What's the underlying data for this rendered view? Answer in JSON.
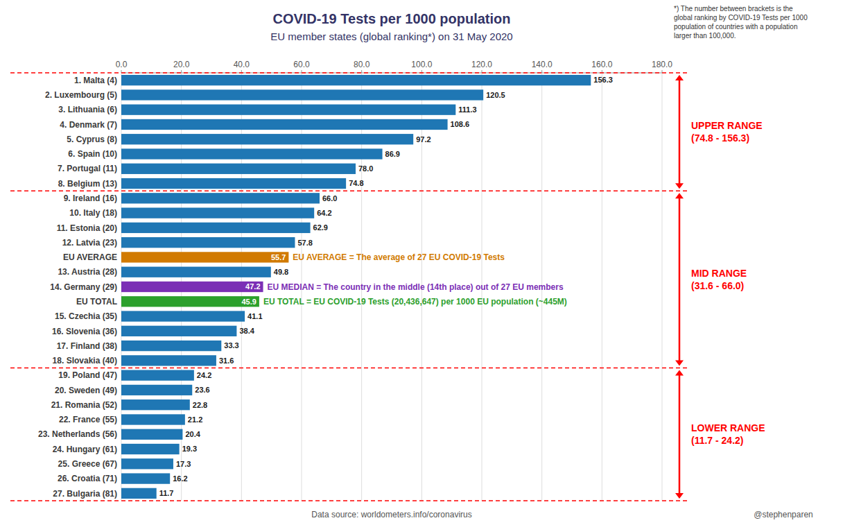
{
  "chart_data": {
    "type": "bar",
    "orientation": "horizontal",
    "title": "COVID-19 Tests per 1000 population",
    "subtitle": "EU member states (global ranking*) on 31 May 2020",
    "footnote": "*) The number between brackets is the\nglobal ranking by COVID-19 Tests per 1000\npopulation of countries with a population\nlarger than 100,000.",
    "datasource": "Data source: worldometers.info/coronavirus",
    "credit": "@stephenparen",
    "xlim": [
      0,
      180
    ],
    "xticks": [
      {
        "value": 0,
        "label": "0.0"
      },
      {
        "value": 20,
        "label": "20.0"
      },
      {
        "value": 40,
        "label": "40.0"
      },
      {
        "value": 60,
        "label": "60.0"
      },
      {
        "value": 80,
        "label": "80.0"
      },
      {
        "value": 100,
        "label": "100.0"
      },
      {
        "value": 120,
        "label": "120.0"
      },
      {
        "value": 140,
        "label": "140.0"
      },
      {
        "value": 160,
        "label": "160.0"
      },
      {
        "value": 180,
        "label": "180.0"
      }
    ],
    "grid": true,
    "data_labels": true,
    "categories": [
      "1. Malta (4)",
      "2. Luxembourg (5)",
      "3. Lithuania (6)",
      "4. Denmark (7)",
      "5. Cyprus (8)",
      "6. Spain (10)",
      "7. Portugal (11)",
      "8. Belgium (13)",
      "9. Ireland (16)",
      "10. Italy (18)",
      "11. Estonia (20)",
      "12. Latvia (23)",
      "EU AVERAGE",
      "13. Austria (28)",
      "14. Germany (29)",
      "EU TOTAL",
      "15. Czechia (35)",
      "16. Slovenia (36)",
      "17. Finland (38)",
      "18. Slovakia (40)",
      "19. Poland (47)",
      "20. Sweden (49)",
      "21. Romania (52)",
      "22. France (55)",
      "23. Netherlands (56)",
      "24. Hungary (61)",
      "25. Greece (67)",
      "26. Croatia (71)",
      "27. Bulgaria (81)"
    ],
    "values": [
      156.3,
      120.5,
      111.3,
      108.6,
      97.2,
      86.9,
      78.0,
      74.8,
      66.0,
      64.2,
      62.9,
      57.8,
      55.7,
      49.8,
      47.2,
      45.9,
      41.1,
      38.4,
      33.3,
      31.6,
      24.2,
      23.6,
      22.8,
      21.2,
      20.4,
      19.3,
      17.3,
      16.2,
      11.7
    ],
    "value_labels": [
      "156.3",
      "120.5",
      "111.3",
      "108.6",
      "97.2",
      "86.9",
      "78.0",
      "74.8",
      "66.0",
      "64.2",
      "62.9",
      "57.8",
      "55.7",
      "49.8",
      "47.2",
      "45.9",
      "41.1",
      "38.4",
      "33.3",
      "31.6",
      "24.2",
      "23.6",
      "22.8",
      "21.2",
      "20.4",
      "19.3",
      "17.3",
      "16.2",
      "11.7"
    ],
    "colors": [
      "#1f77b4",
      "#1f77b4",
      "#1f77b4",
      "#1f77b4",
      "#1f77b4",
      "#1f77b4",
      "#1f77b4",
      "#1f77b4",
      "#1f77b4",
      "#1f77b4",
      "#1f77b4",
      "#1f77b4",
      "#d17a00",
      "#1f77b4",
      "#7b2fb5",
      "#2ca02c",
      "#1f77b4",
      "#1f77b4",
      "#1f77b4",
      "#1f77b4",
      "#1f77b4",
      "#1f77b4",
      "#1f77b4",
      "#1f77b4",
      "#1f77b4",
      "#1f77b4",
      "#1f77b4",
      "#1f77b4",
      "#1f77b4"
    ],
    "annotations": [
      {
        "category": "EU AVERAGE",
        "text": "EU AVERAGE = The average of 27 EU COVID-19 Tests",
        "color": "#d17a00"
      },
      {
        "category": "14. Germany (29)",
        "text": "EU MEDIAN = The country in the middle (14th place) out of 27 EU members",
        "color": "#7b2fb5"
      },
      {
        "category": "EU TOTAL",
        "text": "EU TOTAL = EU COVID-19 Tests (20,436,647) per 1000 EU population (~445M)",
        "color": "#2ca02c"
      }
    ],
    "ranges": [
      {
        "label": "UPPER RANGE\n(74.8 - 156.3)",
        "first": "1. Malta (4)",
        "last": "8. Belgium (13)",
        "color": "red"
      },
      {
        "label": "MID RANGE\n(31.6 - 66.0)",
        "first": "9. Ireland (16)",
        "last": "18. Slovakia (40)",
        "color": "red"
      },
      {
        "label": "LOWER RANGE\n(11.7 - 24.2)",
        "first": "19. Poland (47)",
        "last": "27. Bulgaria (81)",
        "color": "red"
      }
    ]
  }
}
